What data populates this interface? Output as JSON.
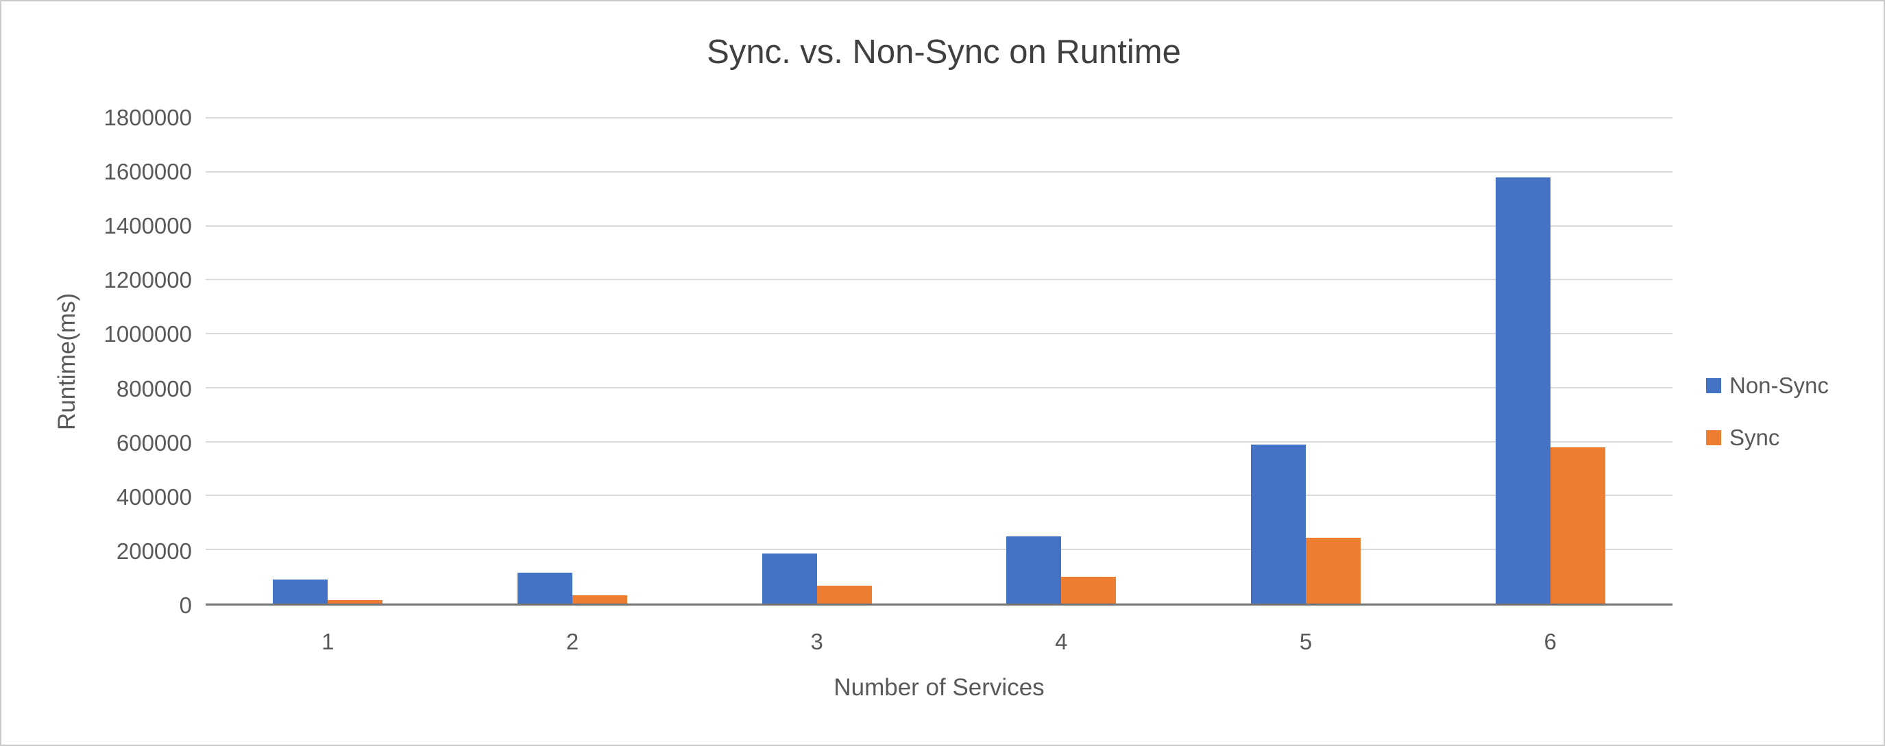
{
  "chart_data": {
    "type": "bar",
    "title": "Sync. vs. Non-Sync on Runtime",
    "xlabel": "Number of Services",
    "ylabel": "Runtime(ms)",
    "categories": [
      "1",
      "2",
      "3",
      "4",
      "5",
      "6"
    ],
    "series": [
      {
        "name": "Non-Sync",
        "color": "#4472C4",
        "values": [
          88000,
          115000,
          185000,
          250000,
          590000,
          1580000
        ]
      },
      {
        "name": "Sync",
        "color": "#ED7D31",
        "values": [
          13000,
          30000,
          66000,
          100000,
          245000,
          580000
        ]
      }
    ],
    "ylim": [
      0,
      1800000
    ],
    "ytick_step": 200000,
    "grid": true,
    "legend_position": "right",
    "gridline_color": "#d9d9d9",
    "axis_line_color": "#737373",
    "text_color": "#595959",
    "title_color": "#404040"
  }
}
